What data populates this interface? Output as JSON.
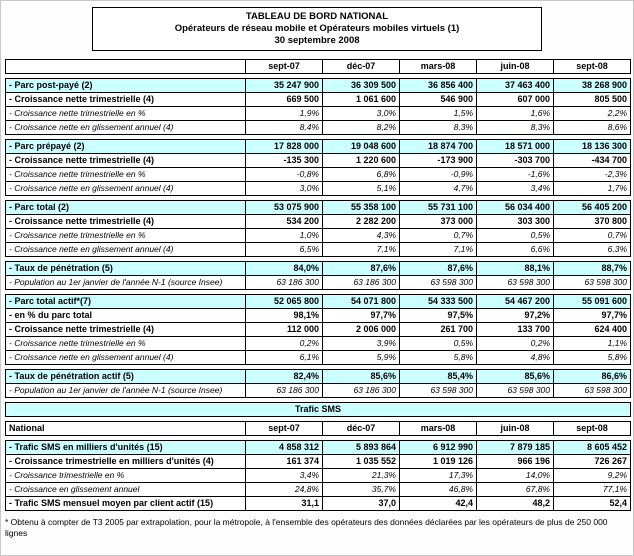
{
  "title": {
    "line1": "TABLEAU DE BORD NATIONAL",
    "line2": "Opérateurs de réseau mobile et Opérateurs mobiles virtuels (1)",
    "line3": "30 septembre 2008"
  },
  "columns": [
    "sept-07",
    "déc-07",
    "mars-08",
    "juin-08",
    "sept-08"
  ],
  "main_table": {
    "groups": [
      {
        "rows": [
          {
            "label": "- Parc post-payé (2)",
            "style": "main",
            "values": [
              "35 247 900",
              "36 309 500",
              "36 856 400",
              "37 463 400",
              "38 268 900"
            ]
          },
          {
            "label": "- Croissance nette trimestrielle (4)",
            "style": "bold",
            "values": [
              "669 500",
              "1 061 600",
              "546 900",
              "607 000",
              "805 500"
            ]
          },
          {
            "label": "- Croissance nette trimestrielle en %",
            "style": "italic",
            "values": [
              "1,9%",
              "3,0%",
              "1,5%",
              "1,6%",
              "2,2%"
            ]
          },
          {
            "label": "- Croissance nette en glissement annuel (4)",
            "style": "italic",
            "values": [
              "8,4%",
              "8,2%",
              "8,3%",
              "8,3%",
              "8,6%"
            ]
          }
        ]
      },
      {
        "rows": [
          {
            "label": "- Parc prépayé (2)",
            "style": "main",
            "values": [
              "17 828 000",
              "19 048 600",
              "18 874 700",
              "18 571 000",
              "18 136 300"
            ]
          },
          {
            "label": "- Croissance nette trimestrielle (4)",
            "style": "bold",
            "values": [
              "-135 300",
              "1 220 600",
              "-173 900",
              "-303 700",
              "-434 700"
            ]
          },
          {
            "label": "- Croissance nette trimestrielle en %",
            "style": "italic",
            "values": [
              "-0,8%",
              "6,8%",
              "-0,9%",
              "-1,6%",
              "-2,3%"
            ]
          },
          {
            "label": "- Croissance nette en glissement annuel (4)",
            "style": "italic",
            "values": [
              "3,0%",
              "5,1%",
              "4,7%",
              "3,4%",
              "1,7%"
            ]
          }
        ]
      },
      {
        "rows": [
          {
            "label": "- Parc total (2)",
            "style": "main",
            "values": [
              "53 075 900",
              "55 358 100",
              "55 731 100",
              "56 034 400",
              "56 405 200"
            ]
          },
          {
            "label": "- Croissance nette trimestrielle (4)",
            "style": "bold",
            "values": [
              "534 200",
              "2 282 200",
              "373 000",
              "303 300",
              "370 800"
            ]
          },
          {
            "label": "- Croissance nette trimestrielle en %",
            "style": "italic",
            "values": [
              "1,0%",
              "4,3%",
              "0,7%",
              "0,5%",
              "0,7%"
            ]
          },
          {
            "label": "- Croissance nette en glissement annuel (4)",
            "style": "italic",
            "values": [
              "6,5%",
              "7,1%",
              "7,1%",
              "6,6%",
              "6,3%"
            ]
          }
        ]
      },
      {
        "rows": [
          {
            "label": "- Taux de pénétration (5)",
            "style": "main",
            "values": [
              "84,0%",
              "87,6%",
              "87,6%",
              "88,1%",
              "88,7%"
            ]
          },
          {
            "label": "- Population au 1er janvier de l'année N-1 (source Insee)",
            "style": "italic",
            "values": [
              "63 186 300",
              "63 186 300",
              "63 598 300",
              "63 598 300",
              "63 598 300"
            ]
          }
        ]
      },
      {
        "rows": [
          {
            "label": "- Parc total actif*(7)",
            "style": "main",
            "values": [
              "52 065 800",
              "54 071 800",
              "54 333 500",
              "54 467 200",
              "55 091 600"
            ]
          },
          {
            "label": "- en % du parc total",
            "style": "bold",
            "values": [
              "98,1%",
              "97,7%",
              "97,5%",
              "97,2%",
              "97,7%"
            ]
          },
          {
            "label": "- Croissance nette trimestrielle (4)",
            "style": "bold",
            "values": [
              "112 000",
              "2 006 000",
              "261 700",
              "133 700",
              "624 400"
            ]
          },
          {
            "label": "- Croissance nette trimestrielle en %",
            "style": "italic",
            "values": [
              "0,2%",
              "3,9%",
              "0,5%",
              "0,2%",
              "1,1%"
            ]
          },
          {
            "label": "- Croissance nette en glissement annuel (4)",
            "style": "italic",
            "values": [
              "6,1%",
              "5,9%",
              "5,8%",
              "4,8%",
              "5,8%"
            ]
          }
        ]
      },
      {
        "rows": [
          {
            "label": "- Taux de pénétration actif (5)",
            "style": "main",
            "values": [
              "82,4%",
              "85,6%",
              "85,4%",
              "85,6%",
              "86,6%"
            ]
          },
          {
            "label": "- Population au 1er janvier de l'année N-1 (source Insee)",
            "style": "italic",
            "values": [
              "63 186 300",
              "63 186 300",
              "63 598 300",
              "63 598 300",
              "63 598 300"
            ]
          }
        ]
      }
    ]
  },
  "sms": {
    "banner": "Trafic SMS",
    "region_label": "National",
    "columns": [
      "sept-07",
      "déc-07",
      "mars-08",
      "juin-08",
      "sept-08"
    ],
    "groups": [
      {
        "rows": [
          {
            "label": "- Trafic SMS en milliers d'unités (15)",
            "style": "main",
            "values": [
              "4 858 312",
              "5 893 864",
              "6 912 990",
              "7 879 185",
              "8 605 452"
            ]
          },
          {
            "label": "- Croissance trimestrielle en milliers d'unités (4)",
            "style": "bold",
            "values": [
              "161 374",
              "1 035 552",
              "1 019 126",
              "966 196",
              "726 267"
            ]
          },
          {
            "label": "- Croissance trimestrielle en %",
            "style": "italic",
            "values": [
              "3,4%",
              "21,3%",
              "17,3%",
              "14,0%",
              "9,2%"
            ]
          },
          {
            "label": "- Croissance en glissement annuel",
            "style": "italic",
            "values": [
              "24,8%",
              "35,7%",
              "46,8%",
              "67,8%",
              "77,1%"
            ]
          },
          {
            "label": "- Trafic SMS mensuel moyen par client actif (15)",
            "style": "bold",
            "values": [
              "31,1",
              "37,0",
              "42,4",
              "48,2",
              "52,4"
            ]
          }
        ]
      }
    ]
  },
  "footnote": "* Obtenu à compter de T3 2005 par extrapolation, pour la métropole, à l'ensemble des opérateurs des données déclarées par les opérateurs de plus de 250 000 lignes"
}
